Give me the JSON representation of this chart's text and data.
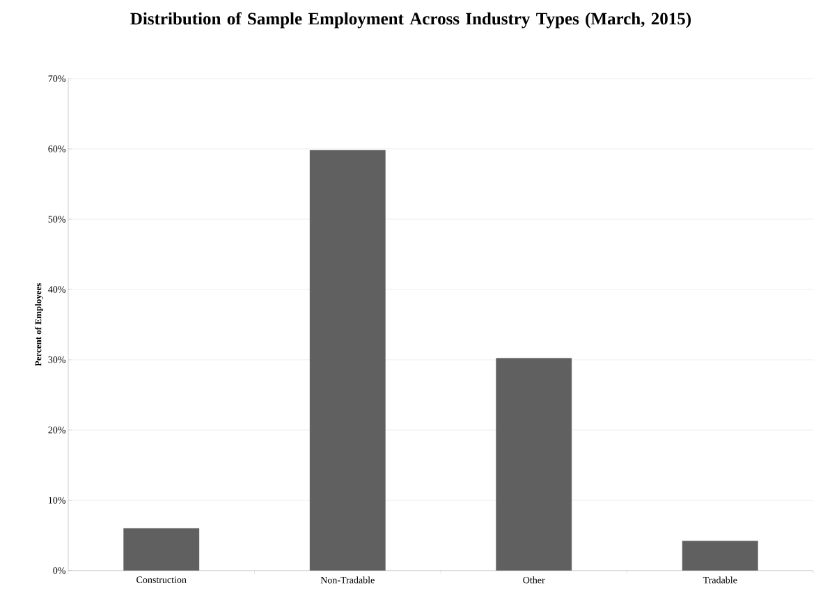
{
  "chart_data": {
    "type": "bar",
    "title": "Distribution of Sample Employment Across Industry Types (March, 2015)",
    "ylabel": "Percent of Employees",
    "categories": [
      "Construction",
      "Non-Tradable",
      "Other",
      "Tradable"
    ],
    "values": [
      6.0,
      59.8,
      30.2,
      4.2
    ],
    "color": "#606060",
    "ylim": [
      0,
      70
    ],
    "yticks": [
      {
        "value": 0,
        "label": "0%"
      },
      {
        "value": 10,
        "label": "10%"
      },
      {
        "value": 20,
        "label": "20%"
      },
      {
        "value": 30,
        "label": "30%"
      },
      {
        "value": 40,
        "label": "40%"
      },
      {
        "value": 50,
        "label": "50%"
      },
      {
        "value": 60,
        "label": "60%"
      },
      {
        "value": 70,
        "label": "70%"
      }
    ],
    "grid": "y"
  }
}
